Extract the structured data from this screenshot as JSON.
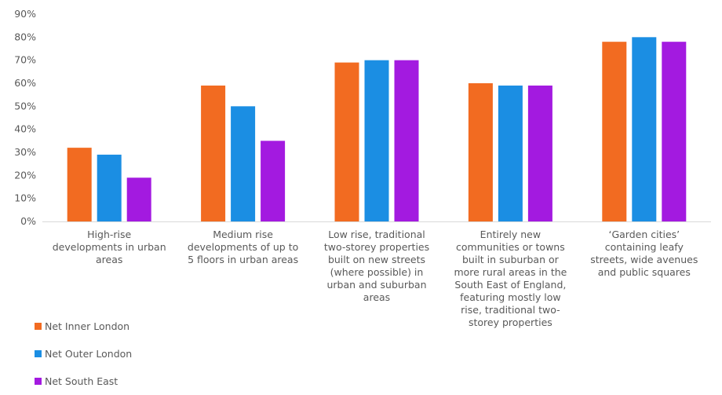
{
  "chart_data": {
    "type": "bar",
    "categories": [
      "High-rise\ndevelopments in urban\nareas",
      "Medium rise\ndevelopments of up to\n5 floors in urban areas",
      "Low rise, traditional\ntwo-storey properties\nbuilt on new streets\n(where possible) in\nurban and suburban\nareas",
      "Entirely new\ncommunities or towns\nbuilt in suburban or\nmore rural areas in the\nSouth East of England,\nfeaturing mostly low\nrise, traditional two-\nstorey properties",
      "‘Garden cities’\ncontaining leafy\nstreets, wide avenues\nand public squares"
    ],
    "series": [
      {
        "name": "Net Inner London",
        "color": "#f26b21",
        "values": [
          32,
          59,
          69,
          60,
          78
        ]
      },
      {
        "name": "Net Outer London",
        "color": "#1b8ee3",
        "values": [
          29,
          50,
          70,
          59,
          80
        ]
      },
      {
        "name": "Net South East",
        "color": "#a31ae0",
        "values": [
          19,
          35,
          70,
          59,
          78
        ]
      }
    ],
    "ylim": [
      0,
      90
    ],
    "yticks": [
      "0%",
      "10%",
      "20%",
      "30%",
      "40%",
      "50%",
      "60%",
      "70%",
      "80%",
      "90%"
    ],
    "grid": false,
    "legend_position": "bottom-left"
  }
}
